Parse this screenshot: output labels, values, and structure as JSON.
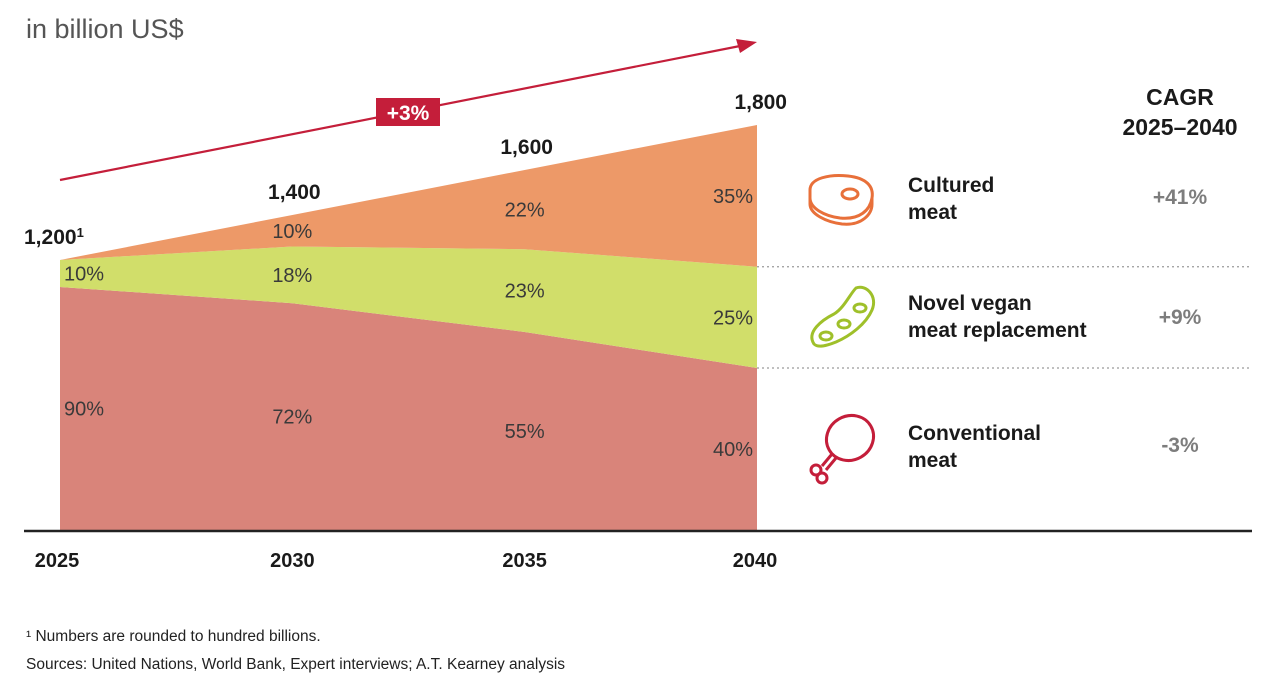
{
  "unit_label": "in billion US$",
  "chart_data": {
    "type": "area",
    "stacked_percent": true,
    "x": [
      "2025",
      "2030",
      "2035",
      "2040"
    ],
    "totals": [
      1200,
      1400,
      1600,
      1800
    ],
    "total_labels": [
      "1,200",
      "1,400",
      "1,600",
      "1,800"
    ],
    "total_footnote_mark": "1",
    "ylim": [
      0,
      1800
    ],
    "growth_label": "+3%",
    "series": [
      {
        "name": "Conventional meat",
        "key": "conventional",
        "color": "#d9847a",
        "values": [
          90,
          72,
          55,
          40
        ],
        "labels": [
          "90%",
          "72%",
          "55%",
          "40%"
        ],
        "cagr": "-3%",
        "icon": "chicken-leg-icon"
      },
      {
        "name": "Novel vegan meat replacement",
        "key": "vegan",
        "color": "#d1de6a",
        "values": [
          10,
          18,
          23,
          25
        ],
        "labels": [
          "10%",
          "18%",
          "23%",
          "25%"
        ],
        "cagr": "+9%",
        "icon": "soybean-pod-icon"
      },
      {
        "name": "Cultured meat",
        "key": "cultured",
        "color": "#ed9968",
        "values": [
          0,
          10,
          22,
          35
        ],
        "labels": [
          "",
          "10%",
          "22%",
          "35%"
        ],
        "cagr": "+41%",
        "icon": "steak-icon"
      }
    ],
    "cagr_header": [
      "CAGR",
      "2025–2040"
    ],
    "grid": false
  },
  "legend": {
    "cultured": "Cultured\nmeat",
    "vegan": "Novel vegan\nmeat replacement",
    "conventional": "Conventional\nmeat"
  },
  "footnotes": {
    "note1": "¹ Numbers are rounded to hundred billions.",
    "sources": "Sources: United Nations, World Bank, Expert interviews; A.T. Kearney analysis"
  },
  "colors": {
    "arrow": "#c41e3a",
    "axis": "#222222",
    "cultured_icon": "#e8703a",
    "vegan_icon": "#9fc02a",
    "conventional_icon": "#c41e3a"
  }
}
